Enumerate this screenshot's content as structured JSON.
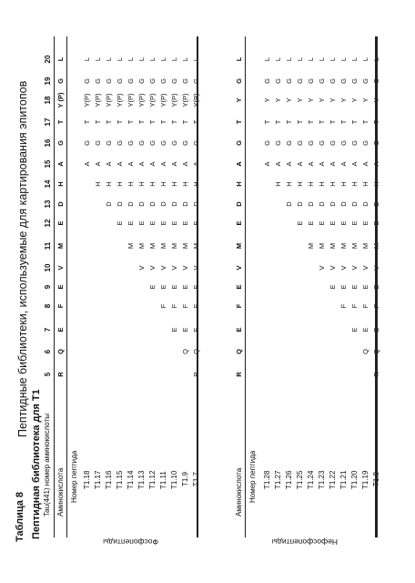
{
  "caption": "Пептидные библиотеки, используемые для картирования эпитопов",
  "table_title": "Таблица 8",
  "subtitle": "Пептидная библиотека для T1",
  "header_label": "Tau(441) номер аминокислоты",
  "columns": [
    "5",
    "6",
    "7",
    "8",
    "9",
    "10",
    "11",
    "12",
    "13",
    "14",
    "15",
    "16",
    "17",
    "18",
    "19",
    "20"
  ],
  "phospho": {
    "group_label": "Фосфопептиды",
    "aa_label": "Аминокислота",
    "sequence": [
      "R",
      "Q",
      "E",
      "F",
      "E",
      "V",
      "M",
      "E",
      "D",
      "H",
      "A",
      "G",
      "T",
      "Y (P)",
      "G",
      "L"
    ],
    "peptide_header": "Номер пептида",
    "rows": [
      {
        "id": "T1.18",
        "cells": [
          "",
          "",
          "",
          "",
          "",
          "",
          "",
          "",
          "",
          "",
          "A",
          "G",
          "T",
          "Y(P)",
          "G",
          "L"
        ]
      },
      {
        "id": "T1.17",
        "cells": [
          "",
          "",
          "",
          "",
          "",
          "",
          "",
          "",
          "",
          "H",
          "A",
          "G",
          "T",
          "Y(P)",
          "G",
          "L"
        ]
      },
      {
        "id": "T1.16",
        "cells": [
          "",
          "",
          "",
          "",
          "",
          "",
          "",
          "",
          "D",
          "H",
          "A",
          "G",
          "T",
          "Y(P)",
          "G",
          "L"
        ]
      },
      {
        "id": "T1.15",
        "cells": [
          "",
          "",
          "",
          "",
          "",
          "",
          "",
          "E",
          "D",
          "H",
          "A",
          "G",
          "T",
          "Y(P)",
          "G",
          "L"
        ]
      },
      {
        "id": "T1.14",
        "cells": [
          "",
          "",
          "",
          "",
          "",
          "",
          "M",
          "E",
          "D",
          "H",
          "A",
          "G",
          "T",
          "Y(P)",
          "G",
          "L"
        ]
      },
      {
        "id": "T1.13",
        "cells": [
          "",
          "",
          "",
          "",
          "",
          "V",
          "M",
          "E",
          "D",
          "H",
          "A",
          "G",
          "T",
          "Y(P)",
          "G",
          "L"
        ]
      },
      {
        "id": "T1.12",
        "cells": [
          "",
          "",
          "",
          "",
          "E",
          "V",
          "M",
          "E",
          "D",
          "H",
          "A",
          "G",
          "T",
          "Y(P)",
          "G",
          "L"
        ]
      },
      {
        "id": "T1.11",
        "cells": [
          "",
          "",
          "",
          "F",
          "E",
          "V",
          "M",
          "E",
          "D",
          "H",
          "A",
          "G",
          "T",
          "Y(P)",
          "G",
          "L"
        ]
      },
      {
        "id": "T1.10",
        "cells": [
          "",
          "",
          "E",
          "F",
          "E",
          "V",
          "M",
          "E",
          "D",
          "H",
          "A",
          "G",
          "T",
          "Y(P)",
          "G",
          "L"
        ]
      },
      {
        "id": "T1.9",
        "cells": [
          "",
          "Q",
          "E",
          "F",
          "E",
          "V",
          "M",
          "E",
          "D",
          "H",
          "A",
          "G",
          "T",
          "Y(P)",
          "G",
          "L"
        ]
      },
      {
        "id": "T1.7",
        "cells": [
          "R",
          "Q",
          "E",
          "F",
          "E",
          "V",
          "M",
          "E",
          "D",
          "H",
          "A",
          "G",
          "T",
          "Y(P)",
          "G",
          "L"
        ]
      }
    ]
  },
  "nonphospho": {
    "group_label": "Нефосфопептиды",
    "aa_label": "Аминокислота",
    "sequence": [
      "R",
      "Q",
      "E",
      "F",
      "E",
      "V",
      "M",
      "E",
      "D",
      "H",
      "A",
      "G",
      "T",
      "Y",
      "G",
      "L"
    ],
    "peptide_header": "Номер пептида",
    "rows": [
      {
        "id": "T1.28",
        "cells": [
          "",
          "",
          "",
          "",
          "",
          "",
          "",
          "",
          "",
          "",
          "A",
          "G",
          "T",
          "Y",
          "G",
          "L"
        ]
      },
      {
        "id": "T1.27",
        "cells": [
          "",
          "",
          "",
          "",
          "",
          "",
          "",
          "",
          "",
          "H",
          "A",
          "G",
          "T",
          "Y",
          "G",
          "L"
        ]
      },
      {
        "id": "T1.26",
        "cells": [
          "",
          "",
          "",
          "",
          "",
          "",
          "",
          "",
          "D",
          "H",
          "A",
          "G",
          "T",
          "Y",
          "G",
          "L"
        ]
      },
      {
        "id": "T1.25",
        "cells": [
          "",
          "",
          "",
          "",
          "",
          "",
          "",
          "E",
          "D",
          "H",
          "A",
          "G",
          "T",
          "Y",
          "G",
          "L"
        ]
      },
      {
        "id": "T1.24",
        "cells": [
          "",
          "",
          "",
          "",
          "",
          "",
          "M",
          "E",
          "D",
          "H",
          "A",
          "G",
          "T",
          "Y",
          "G",
          "L"
        ]
      },
      {
        "id": "T1.23",
        "cells": [
          "",
          "",
          "",
          "",
          "",
          "V",
          "M",
          "E",
          "D",
          "H",
          "A",
          "G",
          "T",
          "Y",
          "G",
          "L"
        ]
      },
      {
        "id": "T1.22",
        "cells": [
          "",
          "",
          "",
          "",
          "E",
          "V",
          "M",
          "E",
          "D",
          "H",
          "A",
          "G",
          "T",
          "Y",
          "G",
          "L"
        ]
      },
      {
        "id": "T1.21",
        "cells": [
          "",
          "",
          "",
          "F",
          "E",
          "V",
          "M",
          "E",
          "D",
          "H",
          "A",
          "G",
          "T",
          "Y",
          "G",
          "L"
        ]
      },
      {
        "id": "T1.20",
        "cells": [
          "",
          "",
          "E",
          "F",
          "E",
          "V",
          "M",
          "E",
          "D",
          "H",
          "A",
          "G",
          "T",
          "Y",
          "G",
          "L"
        ]
      },
      {
        "id": "T1.19",
        "cells": [
          "",
          "Q",
          "E",
          "F",
          "E",
          "V",
          "M",
          "E",
          "D",
          "H",
          "A",
          "G",
          "T",
          "Y",
          "G",
          "L"
        ]
      },
      {
        "id": "T1.8",
        "cells": [
          "R",
          "Q",
          "E",
          "F",
          "E",
          "V",
          "M",
          "E",
          "D",
          "H",
          "A",
          "G",
          "T",
          "Y",
          "G",
          "L"
        ]
      }
    ]
  }
}
